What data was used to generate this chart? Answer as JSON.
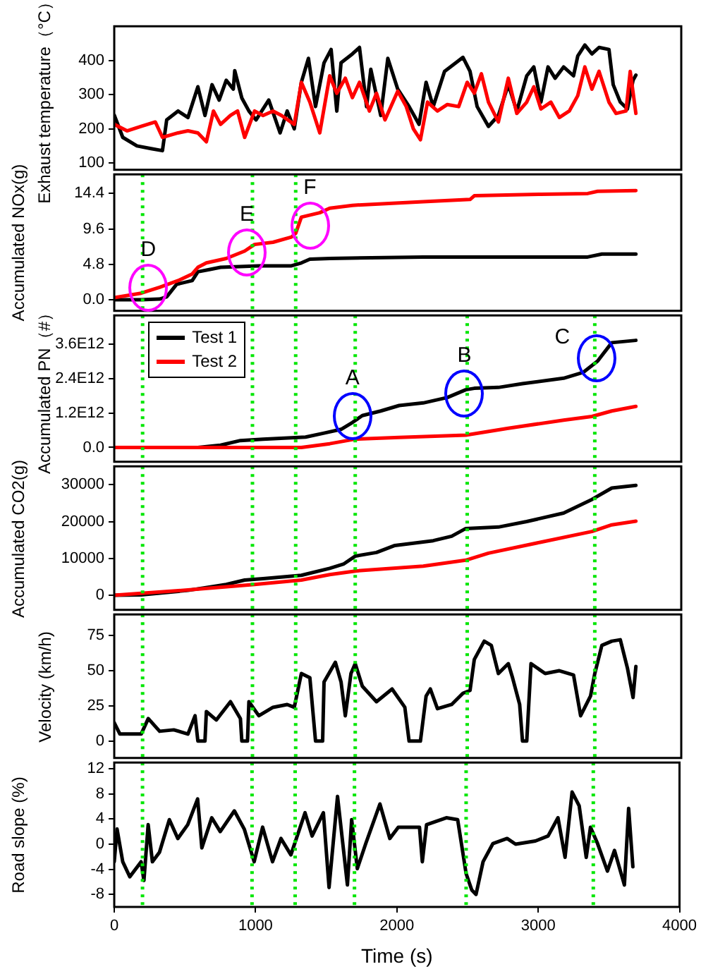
{
  "chart_data": [
    {
      "type": "line",
      "ylabel": "Exhaust temperature（°C）",
      "xlim": [
        0,
        4000
      ],
      "xticks": [
        0,
        1000,
        2000,
        3000,
        4000
      ],
      "ylim": [
        80,
        500
      ],
      "yticks": [
        100,
        200,
        300,
        400
      ],
      "tick_labels": "y",
      "series": [
        {
          "color": "#000000",
          "x": [
            0,
            60,
            160,
            260,
            340,
            370,
            450,
            520,
            590,
            640,
            690,
            740,
            790,
            840,
            850,
            900,
            950,
            1000,
            1090,
            1170,
            1220,
            1270,
            1320,
            1370,
            1420,
            1480,
            1530,
            1570,
            1600,
            1680,
            1730,
            1780,
            1810,
            1880,
            1930,
            2000,
            2080,
            2150,
            2200,
            2250,
            2330,
            2410,
            2460,
            2510,
            2560,
            2640,
            2710,
            2780,
            2840,
            2910,
            2960,
            3010,
            3060,
            3110,
            3170,
            3240,
            3270,
            3320,
            3370,
            3420,
            3490,
            3520,
            3570,
            3620,
            3660,
            3680
          ],
          "values": [
            240,
            175,
            150,
            142,
            136,
            226,
            252,
            233,
            323,
            239,
            329,
            284,
            342,
            316,
            370,
            290,
            252,
            226,
            284,
            188,
            252,
            200,
            336,
            406,
            265,
            393,
            432,
            252,
            393,
            419,
            438,
            265,
            374,
            239,
            406,
            316,
            265,
            213,
            336,
            265,
            368,
            393,
            409,
            368,
            265,
            207,
            239,
            329,
            252,
            355,
            381,
            278,
            381,
            348,
            381,
            355,
            413,
            445,
            419,
            438,
            432,
            329,
            278,
            258,
            342,
            357
          ]
        },
        {
          "color": "#ff0000",
          "x": [
            0,
            90,
            190,
            290,
            340,
            390,
            450,
            520,
            590,
            650,
            700,
            750,
            820,
            870,
            920,
            990,
            1050,
            1120,
            1180,
            1270,
            1320,
            1380,
            1450,
            1520,
            1570,
            1630,
            1680,
            1730,
            1800,
            1850,
            1910,
            2000,
            2060,
            2110,
            2160,
            2210,
            2280,
            2350,
            2430,
            2490,
            2540,
            2590,
            2640,
            2710,
            2780,
            2840,
            2910,
            2960,
            3010,
            3080,
            3140,
            3210,
            3270,
            3320,
            3370,
            3420,
            3490,
            3540,
            3610,
            3640,
            3680
          ],
          "values": [
            213,
            194,
            207,
            220,
            175,
            181,
            188,
            194,
            188,
            162,
            252,
            213,
            239,
            252,
            175,
            252,
            239,
            252,
            239,
            213,
            336,
            278,
            188,
            355,
            304,
            348,
            291,
            336,
            252,
            304,
            226,
            310,
            265,
            200,
            168,
            278,
            252,
            271,
            265,
            336,
            304,
            361,
            278,
            220,
            348,
            245,
            278,
            323,
            258,
            278,
            233,
            252,
            297,
            381,
            316,
            368,
            278,
            245,
            252,
            368,
            245
          ]
        }
      ]
    },
    {
      "type": "line",
      "ylabel": "Accumulated NOx(g)",
      "xlim": [
        0,
        4000
      ],
      "xticks": [
        0,
        1000,
        2000,
        3000,
        4000
      ],
      "ylim": [
        -1.5,
        17
      ],
      "yticks": [
        {
          "value": 0,
          "label": "0.0"
        },
        4.8,
        9.6,
        14.4
      ],
      "tick_labels": "y",
      "series": [
        {
          "color": "#000000",
          "x": [
            0,
            190,
            320,
            370,
            440,
            550,
            590,
            670,
            750,
            1020,
            1250,
            1320,
            1380,
            1520,
            2180,
            2840,
            3340,
            3440,
            3680
          ],
          "values": [
            0,
            0,
            0.1,
            0.4,
            2.1,
            2.6,
            3.8,
            4.1,
            4.4,
            4.6,
            4.6,
            5.0,
            5.5,
            5.6,
            5.8,
            5.8,
            5.8,
            6.2,
            6.2
          ]
        },
        {
          "color": "#ff0000",
          "x": [
            0,
            190,
            320,
            450,
            550,
            590,
            650,
            790,
            920,
            990,
            1120,
            1250,
            1280,
            1320,
            1450,
            1520,
            1680,
            2180,
            2510,
            2540,
            3010,
            3340,
            3410,
            3680
          ],
          "values": [
            0.3,
            0.9,
            1.7,
            2.6,
            3.5,
            4.4,
            5.0,
            5.6,
            6.6,
            7.5,
            7.8,
            8.5,
            9.0,
            11.2,
            11.8,
            12.4,
            12.8,
            13.3,
            13.6,
            14.1,
            14.3,
            14.4,
            14.7,
            14.8
          ]
        }
      ],
      "ref_lines": [
        {
          "axis": "x",
          "value": 200,
          "color": "#00e600",
          "line_style": "dotted"
        },
        {
          "axis": "x",
          "value": 975,
          "color": "#00e600",
          "line_style": "dotted"
        },
        {
          "axis": "x",
          "value": 1280,
          "color": "#00e600",
          "line_style": "dotted"
        }
      ],
      "annotations": [
        {
          "text": "D",
          "x": 240,
          "y": 1.7
        },
        {
          "text": "E",
          "x": 935,
          "y": 6.4
        },
        {
          "text": "F",
          "x": 1380,
          "y": 10.1
        }
      ]
    },
    {
      "type": "line",
      "ylabel": "Accumulated PN（#）",
      "xlim": [
        0,
        4000
      ],
      "xticks": [
        0,
        1000,
        2000,
        3000,
        4000
      ],
      "ylim": [
        -500000000000.0,
        4600000000000.0
      ],
      "yticks": [
        {
          "value": 0,
          "label": "0.0"
        },
        {
          "value": 1200000000000.0,
          "label": "1.2E12"
        },
        {
          "value": 2400000000000.0,
          "label": "2.4E12"
        },
        {
          "value": 3600000000000.0,
          "label": "3.6E12"
        }
      ],
      "tick_labels": "y",
      "legend": "top left",
      "series": [
        {
          "name": "Test 1",
          "color": "#000000",
          "x": [
            0,
            590,
            750,
            890,
            1050,
            1350,
            1480,
            1600,
            1680,
            1750,
            1880,
            2010,
            2180,
            2350,
            2480,
            2540,
            2710,
            2880,
            3170,
            3310,
            3410,
            3510,
            3680
          ],
          "values": [
            0,
            0,
            80000000000.0,
            240000000000.0,
            290000000000.0,
            360000000000.0,
            500000000000.0,
            630000000000.0,
            870000000000.0,
            1110000000000.0,
            1270000000000.0,
            1460000000000.0,
            1550000000000.0,
            1740000000000.0,
            2010000000000.0,
            2060000000000.0,
            2090000000000.0,
            2220000000000.0,
            2410000000000.0,
            2620000000000.0,
            3010000000000.0,
            3650000000000.0,
            3730000000000.0
          ]
        },
        {
          "name": "Test 2",
          "color": "#ff0000",
          "x": [
            0,
            1320,
            1520,
            1700,
            2010,
            2480,
            2780,
            3170,
            3370,
            3510,
            3680
          ],
          "values": [
            0,
            0,
            130000000000.0,
            290000000000.0,
            350000000000.0,
            430000000000.0,
            670000000000.0,
            950000000000.0,
            1080000000000.0,
            1270000000000.0,
            1430000000000.0
          ]
        }
      ],
      "ref_lines": [
        {
          "axis": "x",
          "value": 200,
          "color": "#00e600",
          "line_style": "dotted"
        },
        {
          "axis": "x",
          "value": 975,
          "color": "#00e600",
          "line_style": "dotted"
        },
        {
          "axis": "x",
          "value": 1280,
          "color": "#00e600",
          "line_style": "dotted"
        },
        {
          "axis": "x",
          "value": 1700,
          "color": "#00e600",
          "line_style": "dotted"
        },
        {
          "axis": "x",
          "value": 2490,
          "color": "#00e600",
          "line_style": "dotted"
        },
        {
          "axis": "x",
          "value": 3390,
          "color": "#00e600",
          "line_style": "dotted"
        }
      ],
      "annotations": [
        {
          "text": "A",
          "x": 1680,
          "y": 1100000000000.0
        },
        {
          "text": "B",
          "x": 2470,
          "y": 1900000000000.0
        },
        {
          "text": "C",
          "x": 3400,
          "y": 3100000000000.0
        }
      ]
    },
    {
      "type": "line",
      "ylabel": "Accumulated CO2(g)",
      "xlim": [
        0,
        4000
      ],
      "xticks": [
        0,
        1000,
        2000,
        3000,
        4000
      ],
      "ylim": [
        -4000,
        35000
      ],
      "yticks": [
        0,
        10000,
        20000,
        30000
      ],
      "tick_labels": "y",
      "series": [
        {
          "color": "#000000",
          "x": [
            0,
            190,
            520,
            790,
            920,
            1050,
            1320,
            1520,
            1620,
            1700,
            1850,
            1980,
            2250,
            2380,
            2480,
            2710,
            2910,
            3170,
            3370,
            3510,
            3680
          ],
          "values": [
            0,
            100,
            1300,
            2900,
            4100,
            4500,
            5400,
            7300,
            8500,
            10600,
            11600,
            13500,
            14800,
            16000,
            18100,
            18500,
            20000,
            22300,
            26000,
            29100,
            29800
          ]
        },
        {
          "color": "#ff0000",
          "x": [
            0,
            520,
            990,
            1320,
            1520,
            1710,
            2180,
            2480,
            2640,
            3010,
            3370,
            3510,
            3680
          ],
          "values": [
            0,
            1400,
            2900,
            4100,
            5600,
            6600,
            7900,
            9500,
            11400,
            14400,
            17300,
            19100,
            20100
          ]
        }
      ],
      "ref_lines": [
        {
          "axis": "x",
          "value": 200,
          "color": "#00e600",
          "line_style": "dotted"
        },
        {
          "axis": "x",
          "value": 975,
          "color": "#00e600",
          "line_style": "dotted"
        },
        {
          "axis": "x",
          "value": 1280,
          "color": "#00e600",
          "line_style": "dotted"
        },
        {
          "axis": "x",
          "value": 1700,
          "color": "#00e600",
          "line_style": "dotted"
        },
        {
          "axis": "x",
          "value": 2490,
          "color": "#00e600",
          "line_style": "dotted"
        },
        {
          "axis": "x",
          "value": 3390,
          "color": "#00e600",
          "line_style": "dotted"
        }
      ]
    },
    {
      "type": "line",
      "ylabel": "Velocity (km/h)",
      "xlim": [
        0,
        4000
      ],
      "xticks": [
        0,
        1000,
        2000,
        3000,
        4000
      ],
      "ylim": [
        -12,
        90
      ],
      "yticks": [
        0,
        25,
        50,
        75
      ],
      "tick_labels": "y",
      "series": [
        {
          "color": "#000000",
          "x": [
            0,
            40,
            120,
            190,
            240,
            320,
            420,
            520,
            570,
            590,
            640,
            650,
            720,
            820,
            890,
            900,
            940,
            950,
            1020,
            1120,
            1220,
            1270,
            1320,
            1380,
            1420,
            1470,
            1480,
            1560,
            1600,
            1630,
            1670,
            1700,
            1750,
            1850,
            1960,
            2050,
            2080,
            2160,
            2200,
            2230,
            2280,
            2380,
            2460,
            2510,
            2540,
            2610,
            2660,
            2710,
            2780,
            2810,
            2860,
            2880,
            2910,
            2940,
            3040,
            3140,
            3240,
            3290,
            3360,
            3390,
            3440,
            3510,
            3570,
            3620,
            3660,
            3680
          ],
          "values": [
            13,
            5,
            5,
            5,
            16,
            7,
            8,
            5,
            18,
            0,
            0,
            21,
            15,
            28,
            16,
            0,
            0,
            28,
            18,
            24,
            26,
            24,
            48,
            45,
            0,
            0,
            42,
            56,
            42,
            18,
            48,
            55,
            39,
            28,
            37,
            24,
            0,
            0,
            32,
            37,
            23,
            26,
            34,
            36,
            58,
            71,
            68,
            48,
            55,
            45,
            26,
            0,
            0,
            55,
            48,
            50,
            47,
            18,
            32,
            48,
            68,
            71,
            72,
            52,
            31,
            53
          ]
        }
      ],
      "ref_lines": [
        {
          "axis": "x",
          "value": 200,
          "color": "#00e600",
          "line_style": "dotted"
        },
        {
          "axis": "x",
          "value": 975,
          "color": "#00e600",
          "line_style": "dotted"
        },
        {
          "axis": "x",
          "value": 1280,
          "color": "#00e600",
          "line_style": "dotted"
        },
        {
          "axis": "x",
          "value": 1700,
          "color": "#00e600",
          "line_style": "dotted"
        },
        {
          "axis": "x",
          "value": 2490,
          "color": "#00e600",
          "line_style": "dotted"
        },
        {
          "axis": "x",
          "value": 3390,
          "color": "#00e600",
          "line_style": "dotted"
        }
      ]
    },
    {
      "type": "line",
      "ylabel": "Road slope (%)",
      "xlabel": "Time (s)",
      "xlim": [
        0,
        4000
      ],
      "xticks": [
        0,
        1000,
        2000,
        3000,
        4000
      ],
      "ylim": [
        -10,
        13
      ],
      "yticks": [
        -8,
        -4,
        0,
        4,
        8,
        12
      ],
      "series": [
        {
          "color": "#000000",
          "x": [
            0,
            20,
            60,
            110,
            190,
            210,
            240,
            270,
            320,
            390,
            450,
            520,
            590,
            620,
            690,
            750,
            850,
            920,
            990,
            1050,
            1120,
            1180,
            1250,
            1350,
            1400,
            1480,
            1520,
            1580,
            1650,
            1680,
            1720,
            1780,
            1880,
            1950,
            2010,
            2160,
            2180,
            2210,
            2350,
            2430,
            2490,
            2530,
            2560,
            2610,
            2680,
            2780,
            2840,
            2980,
            3070,
            3140,
            3190,
            3240,
            3290,
            3340,
            3370,
            3420,
            3490,
            3540,
            3610,
            3640,
            3670
          ],
          "values": [
            -2.8,
            2.4,
            -2.8,
            -5.2,
            -2.8,
            -5.8,
            3.1,
            -2.8,
            -1.3,
            3.9,
            0.9,
            3.1,
            7.2,
            -0.6,
            4.2,
            2.0,
            5.3,
            2.4,
            -2.8,
            2.7,
            -2.8,
            0.9,
            -1.7,
            5.0,
            1.3,
            5.0,
            -6.9,
            7.6,
            -6.5,
            3.9,
            -3.9,
            0.1,
            6.4,
            0.9,
            2.7,
            2.7,
            -2.8,
            3.1,
            4.2,
            3.9,
            -4.7,
            -7.3,
            -8.0,
            -2.8,
            0.1,
            0.9,
            0,
            0.5,
            1.3,
            4.2,
            -2.1,
            8.3,
            6.1,
            -2.1,
            2.7,
            0.1,
            -4.3,
            -1.0,
            -6.5,
            5.7,
            -3.6
          ]
        }
      ],
      "ref_lines": [
        {
          "axis": "x",
          "value": 200,
          "color": "#00e600",
          "line_style": "dotted"
        },
        {
          "axis": "x",
          "value": 975,
          "color": "#00e600",
          "line_style": "dotted"
        },
        {
          "axis": "x",
          "value": 1280,
          "color": "#00e600",
          "line_style": "dotted"
        },
        {
          "axis": "x",
          "value": 1700,
          "color": "#00e600",
          "line_style": "dotted"
        },
        {
          "axis": "x",
          "value": 2490,
          "color": "#00e600",
          "line_style": "dotted"
        },
        {
          "axis": "x",
          "value": 3390,
          "color": "#00e600",
          "line_style": "dotted"
        }
      ]
    }
  ]
}
